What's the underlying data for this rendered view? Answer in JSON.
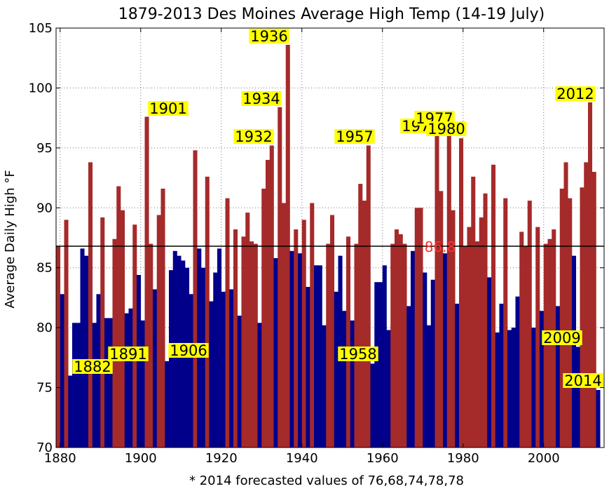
{
  "chart_data": {
    "type": "bar",
    "title": "1879-2013 Des Moines Average High Temp (14-19 July)",
    "ylabel": "Average Daily High °F",
    "footnote": "* 2014 forecasted values of 76,68,74,78,78",
    "xlim": [
      1879,
      2015
    ],
    "ylim": [
      70,
      105
    ],
    "xticks": [
      1880,
      1900,
      1920,
      1940,
      1960,
      1980,
      2000
    ],
    "yticks": [
      70,
      75,
      80,
      85,
      90,
      95,
      100,
      105
    ],
    "grid": true,
    "reference_line": {
      "value": 86.8,
      "label": "86.8",
      "color": "#ff3333"
    },
    "colors": {
      "above": "#a52a2a",
      "below": "#00008b",
      "forecast": "#ffff00",
      "label_text": "#000000",
      "label_bg": "#ffff00"
    },
    "start_year": 1879,
    "values": [
      86.8,
      82.8,
      89.0,
      76.0,
      80.4,
      80.4,
      86.6,
      86.0,
      93.8,
      80.4,
      82.8,
      89.2,
      80.8,
      80.8,
      87.4,
      91.8,
      89.8,
      81.2,
      81.6,
      88.6,
      84.4,
      80.6,
      97.6,
      87.0,
      83.2,
      89.4,
      91.6,
      77.2,
      84.8,
      86.4,
      86.0,
      85.6,
      85.0,
      82.8,
      94.8,
      86.6,
      85.0,
      92.6,
      82.2,
      84.6,
      86.6,
      83.0,
      90.8,
      83.2,
      88.2,
      81.0,
      87.6,
      89.6,
      87.2,
      87.0,
      80.4,
      91.6,
      94.0,
      95.2,
      85.8,
      98.4,
      90.4,
      103.6,
      86.4,
      88.2,
      86.2,
      89.0,
      83.4,
      90.4,
      85.2,
      85.2,
      80.2,
      87.0,
      89.4,
      83.0,
      86.0,
      81.4,
      87.6,
      80.6,
      87.0,
      92.0,
      90.6,
      95.2,
      77.0,
      83.8,
      83.8,
      85.2,
      79.8,
      87.0,
      88.2,
      87.8,
      87.0,
      81.8,
      86.4,
      90.0,
      90.0,
      84.6,
      80.2,
      84.0,
      96.2,
      91.4,
      86.2,
      96.2,
      89.8,
      82.0,
      95.8,
      86.8,
      88.4,
      92.6,
      87.2,
      89.2,
      91.2,
      84.2,
      93.6,
      79.6,
      82.0,
      90.8,
      79.8,
      80.0,
      82.6,
      88.0,
      86.8,
      90.6,
      80.0,
      88.4,
      81.4,
      87.0,
      87.4,
      88.2,
      81.8,
      91.6,
      93.8,
      90.8,
      86.0,
      78.4,
      91.7,
      93.8,
      98.8,
      93.0,
      74.8
    ],
    "forecast_year": 2014,
    "year_labels": [
      {
        "year": 1882,
        "text": "1882"
      },
      {
        "year": 1891,
        "text": "1891"
      },
      {
        "year": 1901,
        "text": "1901"
      },
      {
        "year": 1906,
        "text": "1906"
      },
      {
        "year": 1932,
        "text": "1932"
      },
      {
        "year": 1934,
        "text": "1934"
      },
      {
        "year": 1936,
        "text": "1936"
      },
      {
        "year": 1957,
        "text": "1957"
      },
      {
        "year": 1958,
        "text": "1958"
      },
      {
        "year": 1974,
        "text": "1974"
      },
      {
        "year": 1977,
        "text": "1977"
      },
      {
        "year": 1980,
        "text": "1980"
      },
      {
        "year": 2009,
        "text": "2009"
      },
      {
        "year": 2012,
        "text": "2012"
      },
      {
        "year": 2014,
        "text": "2014"
      }
    ]
  }
}
